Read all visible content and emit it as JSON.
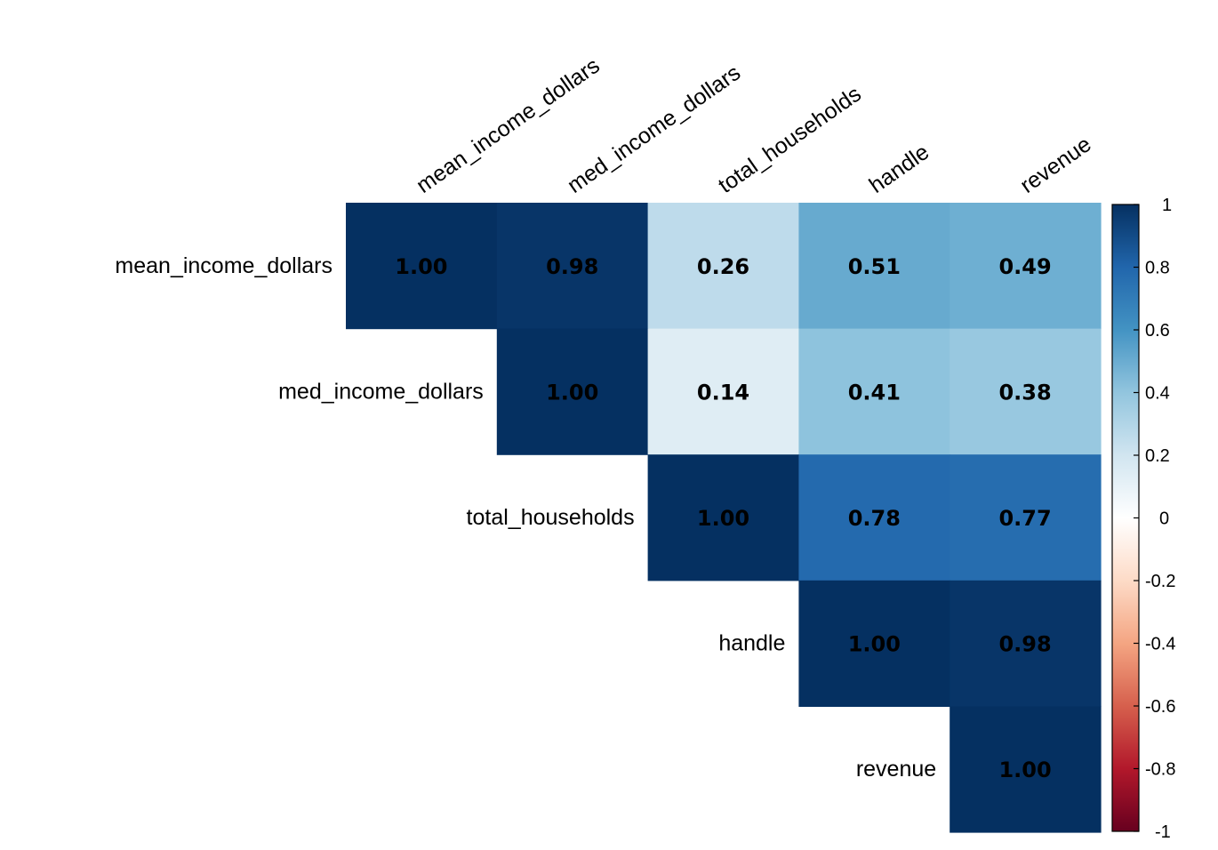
{
  "chart_data": {
    "type": "heatmap",
    "layout": "upper-triangle",
    "variables": [
      "mean_income_dollars",
      "med_income_dollars",
      "total_households",
      "handle",
      "revenue"
    ],
    "matrix": [
      [
        1.0,
        0.98,
        0.26,
        0.51,
        0.49
      ],
      [
        null,
        1.0,
        0.14,
        0.41,
        0.38
      ],
      [
        null,
        null,
        1.0,
        0.78,
        0.77
      ],
      [
        null,
        null,
        null,
        1.0,
        0.98
      ],
      [
        null,
        null,
        null,
        null,
        1.0
      ]
    ],
    "value_labels": [
      [
        "1.00",
        "0.98",
        "0.26",
        "0.51",
        "0.49"
      ],
      [
        "",
        "1.00",
        "0.14",
        "0.41",
        "0.38"
      ],
      [
        "",
        "",
        "1.00",
        "0.78",
        "0.77"
      ],
      [
        "",
        "",
        "",
        "1.00",
        "0.98"
      ],
      [
        "",
        "",
        "",
        "",
        "1.00"
      ]
    ],
    "colorbar": {
      "range": [
        -1,
        1
      ],
      "ticks": [
        "1",
        "0.8",
        "0.6",
        "0.4",
        "0.2",
        "0",
        "-0.2",
        "-0.4",
        "-0.6",
        "-0.8",
        "-1"
      ],
      "tick_values": [
        1,
        0.8,
        0.6,
        0.4,
        0.2,
        0,
        -0.2,
        -0.4,
        -0.6,
        -0.8,
        -1
      ]
    },
    "colors": {
      "stops": [
        "#67001F",
        "#B2182B",
        "#D6604D",
        "#F4A582",
        "#FDDBC7",
        "#FFFFFF",
        "#D1E5F0",
        "#92C5DE",
        "#4393C3",
        "#2166AC",
        "#053061"
      ]
    }
  }
}
